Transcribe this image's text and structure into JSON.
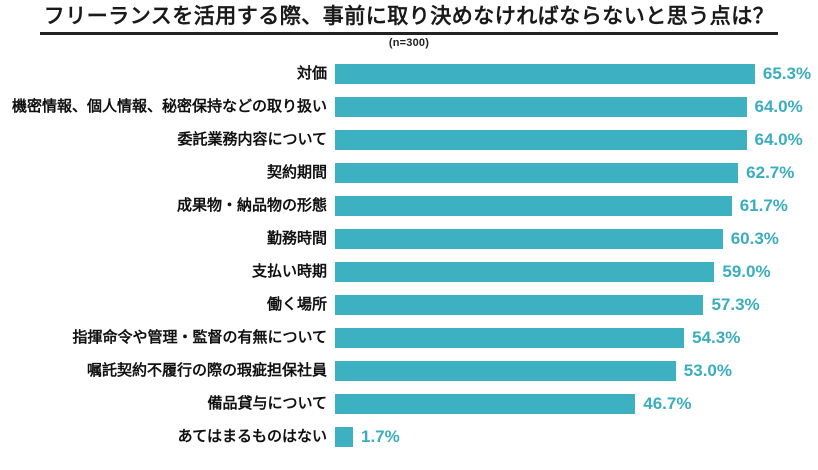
{
  "header": {
    "title": "フリーランスを活用する際、事前に取り決めなければならないと思う点は？",
    "subtitle": "(n=300)"
  },
  "colors": {
    "bar": "#3db1c1",
    "value_text": "#3aadbe",
    "title_text": "#1a1a1a"
  },
  "chart_data": {
    "type": "bar",
    "orientation": "horizontal",
    "title": "フリーランスを活用する際、事前に取り決めなければならないと思う点は？",
    "subtitle": "(n=300)",
    "sample_size": "n=300",
    "unit": "%",
    "xlim": [
      0,
      70
    ],
    "grid": false,
    "legend": false,
    "categories": [
      "対価",
      "機密情報、個人情報、秘密保持などの取り扱い",
      "委託業務内容について",
      "契約期間",
      "成果物・納品物の形態",
      "勤務時間",
      "支払い時期",
      "働く場所",
      "指揮命令や管理・監督の有無について",
      "嘱託契約不履行の際の瑕疵担保社員",
      "備品貸与について",
      "あてはまるものはない"
    ],
    "values": [
      65.3,
      64.0,
      64.0,
      62.7,
      61.7,
      60.3,
      59.0,
      57.3,
      54.3,
      53.0,
      46.7,
      1.7
    ],
    "value_labels": [
      "65.3%",
      "64.0%",
      "64.0%",
      "62.7%",
      "61.7%",
      "60.3%",
      "59.0%",
      "57.3%",
      "54.3%",
      "53.0%",
      "46.7%",
      "1.7%"
    ]
  }
}
